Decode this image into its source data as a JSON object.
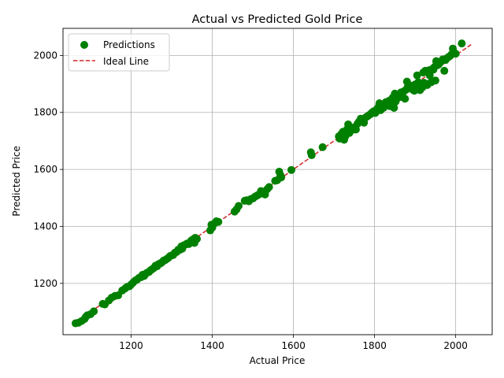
{
  "chart_data": {
    "type": "scatter",
    "title": "Actual vs Predicted Gold Price",
    "xlabel": "Actual Price",
    "ylabel": "Predicted Price",
    "xlim": [
      1032,
      2090
    ],
    "ylim": [
      1020,
      2095
    ],
    "xticks": [
      1200,
      1400,
      1600,
      1800,
      2000
    ],
    "yticks": [
      1200,
      1400,
      1600,
      1800,
      2000
    ],
    "grid": true,
    "legend_position": "top-left",
    "series": [
      {
        "name": "Predictions",
        "kind": "scatter",
        "color": "#008000",
        "points": [
          [
            1063,
            1060
          ],
          [
            1070,
            1062
          ],
          [
            1078,
            1068
          ],
          [
            1085,
            1075
          ],
          [
            1088,
            1082
          ],
          [
            1092,
            1088
          ],
          [
            1100,
            1092
          ],
          [
            1108,
            1102
          ],
          [
            1130,
            1128
          ],
          [
            1135,
            1126
          ],
          [
            1145,
            1140
          ],
          [
            1152,
            1150
          ],
          [
            1160,
            1156
          ],
          [
            1168,
            1158
          ],
          [
            1178,
            1175
          ],
          [
            1185,
            1182
          ],
          [
            1190,
            1188
          ],
          [
            1196,
            1190
          ],
          [
            1200,
            1196
          ],
          [
            1205,
            1203
          ],
          [
            1210,
            1210
          ],
          [
            1215,
            1214
          ],
          [
            1220,
            1220
          ],
          [
            1225,
            1222
          ],
          [
            1228,
            1230
          ],
          [
            1232,
            1226
          ],
          [
            1236,
            1234
          ],
          [
            1240,
            1238
          ],
          [
            1244,
            1240
          ],
          [
            1248,
            1246
          ],
          [
            1252,
            1250
          ],
          [
            1256,
            1254
          ],
          [
            1260,
            1262
          ],
          [
            1264,
            1260
          ],
          [
            1268,
            1268
          ],
          [
            1272,
            1270
          ],
          [
            1276,
            1274
          ],
          [
            1280,
            1280
          ],
          [
            1284,
            1282
          ],
          [
            1288,
            1286
          ],
          [
            1292,
            1290
          ],
          [
            1296,
            1296
          ],
          [
            1300,
            1298
          ],
          [
            1304,
            1300
          ],
          [
            1308,
            1308
          ],
          [
            1312,
            1310
          ],
          [
            1316,
            1318
          ],
          [
            1320,
            1318
          ],
          [
            1324,
            1330
          ],
          [
            1326,
            1322
          ],
          [
            1330,
            1334
          ],
          [
            1334,
            1336
          ],
          [
            1338,
            1340
          ],
          [
            1342,
            1338
          ],
          [
            1348,
            1350
          ],
          [
            1352,
            1354
          ],
          [
            1356,
            1342
          ],
          [
            1358,
            1360
          ],
          [
            1362,
            1356
          ],
          [
            1395,
            1386
          ],
          [
            1398,
            1406
          ],
          [
            1400,
            1396
          ],
          [
            1405,
            1410
          ],
          [
            1410,
            1418
          ],
          [
            1415,
            1416
          ],
          [
            1455,
            1452
          ],
          [
            1460,
            1460
          ],
          [
            1465,
            1472
          ],
          [
            1480,
            1490
          ],
          [
            1485,
            1492
          ],
          [
            1490,
            1488
          ],
          [
            1495,
            1496
          ],
          [
            1500,
            1498
          ],
          [
            1505,
            1504
          ],
          [
            1510,
            1508
          ],
          [
            1515,
            1512
          ],
          [
            1520,
            1524
          ],
          [
            1525,
            1520
          ],
          [
            1530,
            1512
          ],
          [
            1535,
            1530
          ],
          [
            1540,
            1538
          ],
          [
            1555,
            1560
          ],
          [
            1560,
            1562
          ],
          [
            1565,
            1592
          ],
          [
            1568,
            1580
          ],
          [
            1570,
            1572
          ],
          [
            1595,
            1598
          ],
          [
            1643,
            1660
          ],
          [
            1645,
            1650
          ],
          [
            1672,
            1678
          ],
          [
            1712,
            1716
          ],
          [
            1714,
            1708
          ],
          [
            1718,
            1724
          ],
          [
            1722,
            1732
          ],
          [
            1725,
            1704
          ],
          [
            1728,
            1716
          ],
          [
            1732,
            1740
          ],
          [
            1735,
            1758
          ],
          [
            1738,
            1728
          ],
          [
            1742,
            1736
          ],
          [
            1746,
            1744
          ],
          [
            1750,
            1748
          ],
          [
            1754,
            1740
          ],
          [
            1758,
            1760
          ],
          [
            1762,
            1768
          ],
          [
            1766,
            1778
          ],
          [
            1770,
            1772
          ],
          [
            1774,
            1764
          ],
          [
            1778,
            1782
          ],
          [
            1782,
            1786
          ],
          [
            1786,
            1790
          ],
          [
            1790,
            1794
          ],
          [
            1794,
            1800
          ],
          [
            1798,
            1804
          ],
          [
            1802,
            1798
          ],
          [
            1806,
            1812
          ],
          [
            1810,
            1820
          ],
          [
            1812,
            1832
          ],
          [
            1815,
            1808
          ],
          [
            1818,
            1824
          ],
          [
            1822,
            1816
          ],
          [
            1825,
            1828
          ],
          [
            1828,
            1836
          ],
          [
            1832,
            1826
          ],
          [
            1835,
            1840
          ],
          [
            1838,
            1822
          ],
          [
            1842,
            1846
          ],
          [
            1845,
            1852
          ],
          [
            1848,
            1816
          ],
          [
            1850,
            1866
          ],
          [
            1852,
            1838
          ],
          [
            1855,
            1848
          ],
          [
            1858,
            1858
          ],
          [
            1862,
            1854
          ],
          [
            1865,
            1870
          ],
          [
            1868,
            1860
          ],
          [
            1872,
            1874
          ],
          [
            1875,
            1848
          ],
          [
            1878,
            1880
          ],
          [
            1880,
            1908
          ],
          [
            1882,
            1890
          ],
          [
            1885,
            1896
          ],
          [
            1888,
            1894
          ],
          [
            1890,
            1886
          ],
          [
            1894,
            1880
          ],
          [
            1898,
            1876
          ],
          [
            1900,
            1898
          ],
          [
            1903,
            1882
          ],
          [
            1905,
            1930
          ],
          [
            1908,
            1906
          ],
          [
            1910,
            1890
          ],
          [
            1912,
            1878
          ],
          [
            1915,
            1898
          ],
          [
            1918,
            1888
          ],
          [
            1920,
            1940
          ],
          [
            1922,
            1904
          ],
          [
            1925,
            1946
          ],
          [
            1928,
            1900
          ],
          [
            1930,
            1896
          ],
          [
            1934,
            1948
          ],
          [
            1936,
            1930
          ],
          [
            1940,
            1906
          ],
          [
            1942,
            1952
          ],
          [
            1945,
            1950
          ],
          [
            1948,
            1960
          ],
          [
            1950,
            1912
          ],
          [
            1952,
            1980
          ],
          [
            1955,
            1966
          ],
          [
            1958,
            1968
          ],
          [
            1962,
            1976
          ],
          [
            1968,
            1986
          ],
          [
            1972,
            1946
          ],
          [
            1975,
            1984
          ],
          [
            1978,
            1990
          ],
          [
            1982,
            1994
          ],
          [
            1986,
            1998
          ],
          [
            1990,
            2004
          ],
          [
            1993,
            2024
          ],
          [
            1995,
            2012
          ],
          [
            2000,
            2006
          ],
          [
            2015,
            2042
          ]
        ]
      },
      {
        "name": "Ideal Line",
        "kind": "line",
        "color": "#d62728",
        "dash": "dashed",
        "x": [
          1063,
          2040
        ],
        "y": [
          1063,
          2040
        ]
      }
    ]
  }
}
